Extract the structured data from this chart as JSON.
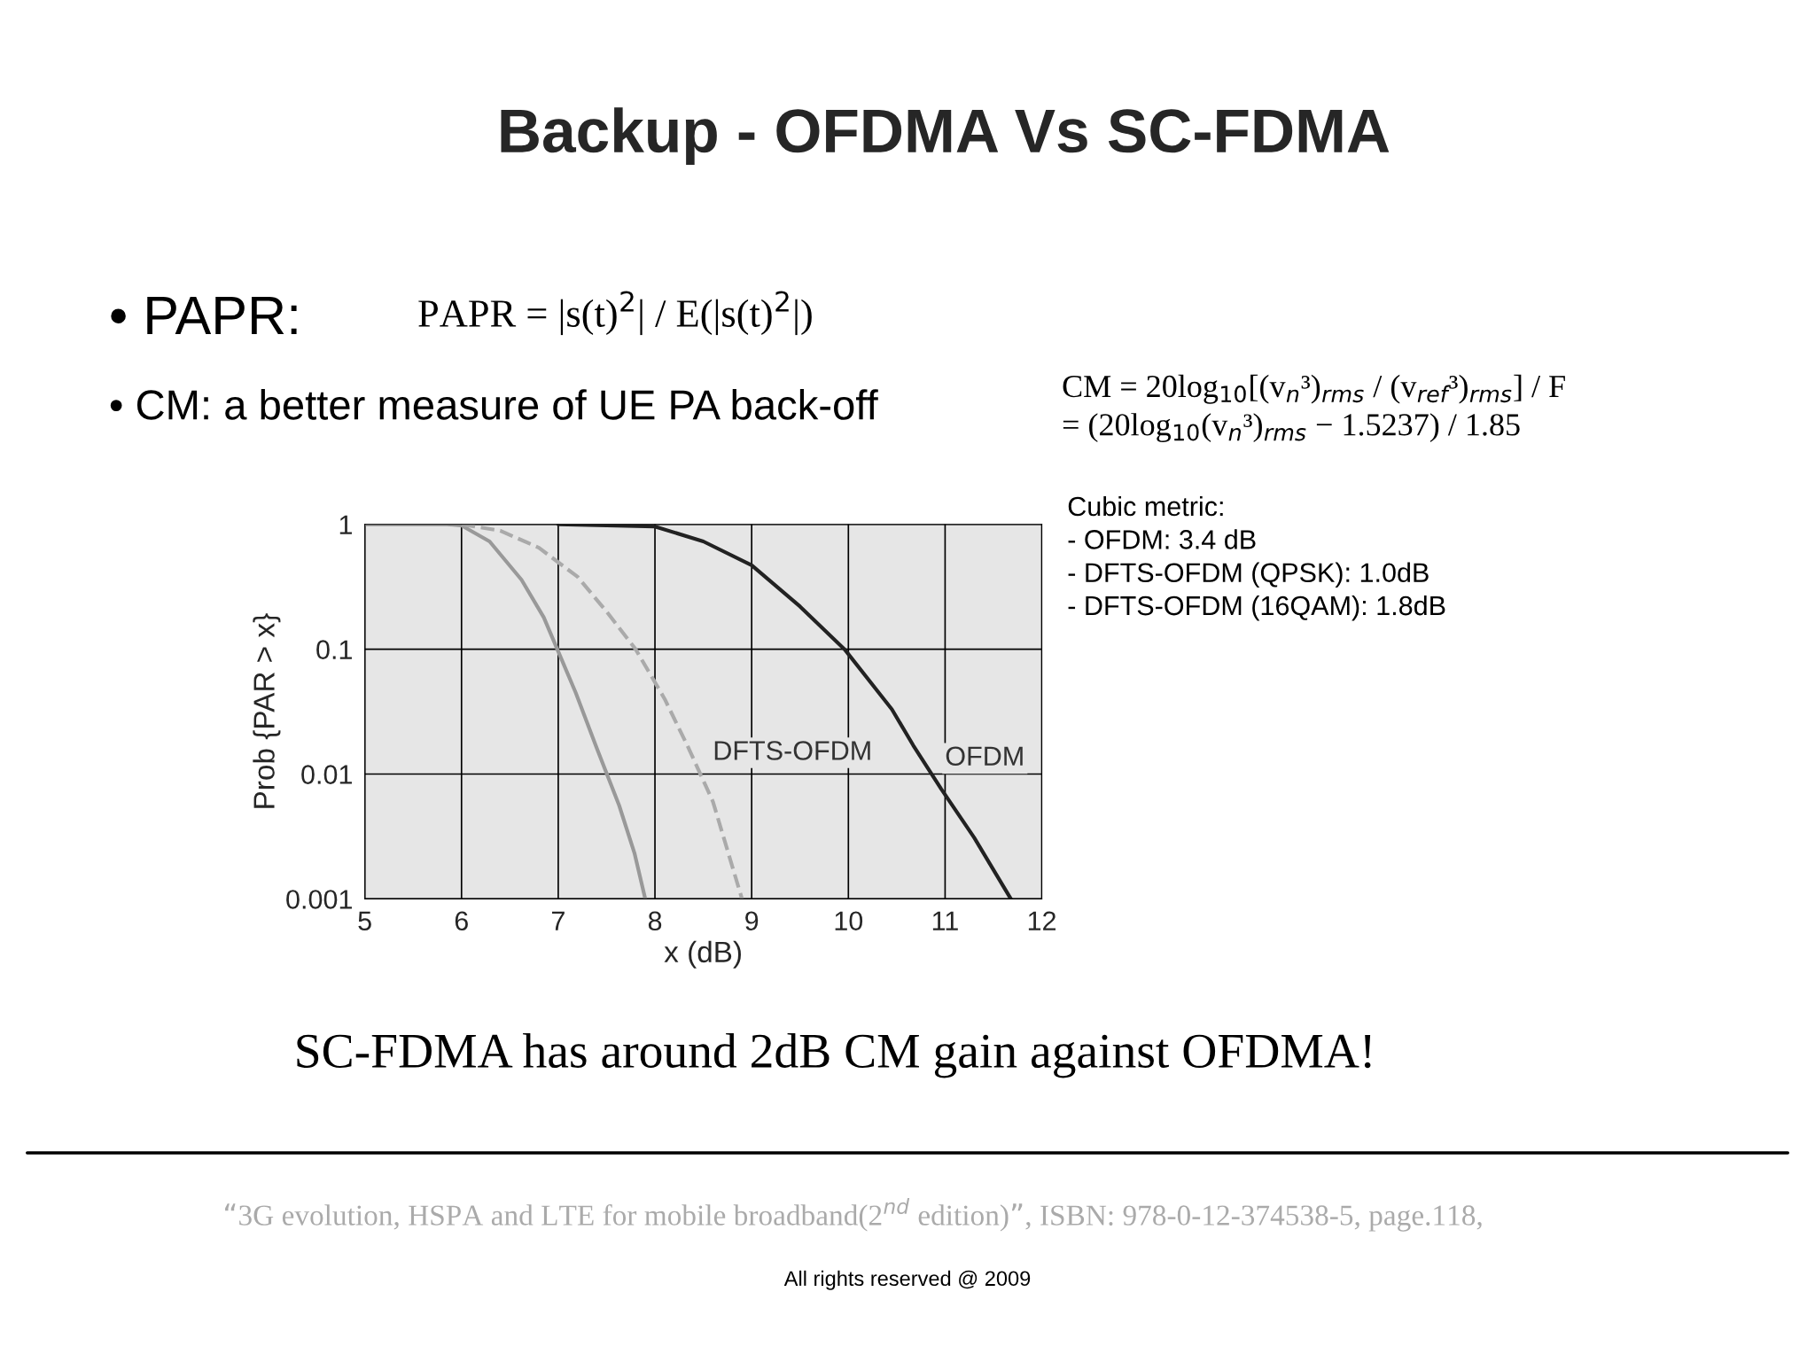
{
  "chart_data": {
    "type": "line",
    "title": "Backup - OFDMA Vs SC-FDMA",
    "xlabel": "x (dB)",
    "ylabel": "Prob {PAR > x}",
    "series": [
      {
        "color": "#999999",
        "line_style": "solid",
        "x": [
          5.0,
          5.85,
          6.0,
          6.29,
          6.62,
          6.85,
          6.99,
          7.18,
          7.4,
          7.63,
          7.79,
          7.9
        ],
        "values": [
          1,
          1,
          0.98,
          0.73,
          0.36,
          0.18,
          0.1,
          0.045,
          0.016,
          0.0056,
          0.0023,
          0.001
        ]
      },
      {
        "color": "#aaaaaa",
        "line_style": "dashed",
        "x": [
          6.0,
          6.4,
          6.8,
          7.2,
          7.5,
          7.8,
          8.1,
          8.35,
          8.6,
          8.9
        ],
        "values": [
          1,
          0.89,
          0.65,
          0.38,
          0.2,
          0.1,
          0.04,
          0.016,
          0.006,
          0.001
        ]
      },
      {
        "color": "#222222",
        "line_style": "solid",
        "x": [
          7.0,
          8.0,
          8.5,
          9.0,
          9.5,
          9.96,
          10.45,
          10.67,
          10.96,
          11.3,
          11.68
        ],
        "values": [
          1,
          0.96,
          0.73,
          0.47,
          0.22,
          0.1,
          0.033,
          0.017,
          0.0076,
          0.0031,
          0.001
        ]
      }
    ],
    "log": "y",
    "xlim": [
      5,
      12
    ],
    "xticks": [
      5,
      6,
      7,
      8,
      9,
      10,
      11,
      12
    ],
    "ylim": [
      0.001,
      1
    ],
    "yticks": [
      0.001,
      0.01,
      0.1,
      1
    ],
    "grid": true,
    "annotations": [
      "• PAPR:",
      "PAPR = |s(t)$^{2}$| / E(|s(t)$^{2}$|)",
      "• CM: a better measure of UE PA back-off",
      "CM = 20log$_{10}$[(v$_{n}$³)$_{rms}$ / (v$_{ref}$³)$_{rms}$] / F\n= (20log$_{10}$(v$_{n}$³)$_{rms}$ − 1.5237) / 1.85",
      "Cubic metric:\n- OFDM: 3.4 dB\n- DFTS-OFDM (QPSK): 1.0dB\n- DFTS-OFDM (16QAM): 1.8dB",
      "DFTS-OFDM",
      "OFDM",
      "SC-FDMA has around 2dB CM gain against OFDMA!",
      "“3G evolution, HSPA and LTE for mobile broadband(2$^{nd}$ edition)”, ISBN: 978-0-12-374538-5, page.118,",
      "All rights reserved @ 2009"
    ]
  }
}
